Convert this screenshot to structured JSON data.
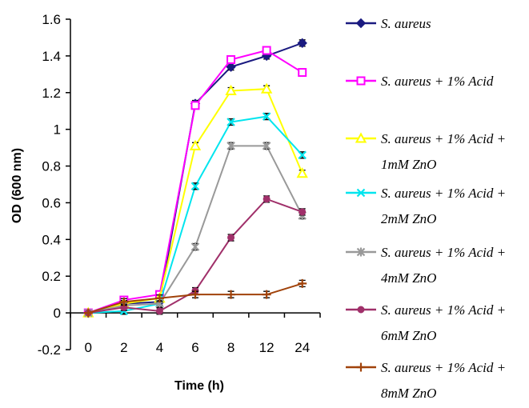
{
  "chart_data": {
    "type": "line",
    "xlabel": "Time (h)",
    "ylabel": "OD (600 nm)",
    "categories": [
      "0",
      "2",
      "4",
      "6",
      "8",
      "12",
      "24"
    ],
    "yticks": [
      "-0.2",
      "0",
      "0.2",
      "0.4",
      "0.6",
      "0.8",
      "1",
      "1.2",
      "1.4",
      "1.6"
    ],
    "ylim": [
      -0.2,
      1.6
    ],
    "grid": false,
    "legend_position": "right",
    "series": [
      {
        "name": "S. aureus",
        "legend_lines": [
          "S. aureus"
        ],
        "color": "#1a1a80",
        "marker": "diamond",
        "values": [
          0.0,
          0.05,
          0.06,
          1.14,
          1.34,
          1.4,
          1.47
        ]
      },
      {
        "name": "S. aureus + 1% Acid",
        "legend_lines": [
          "S. aureus + 1% Acid"
        ],
        "color": "#ff00ff",
        "marker": "square",
        "values": [
          0.0,
          0.07,
          0.1,
          1.13,
          1.38,
          1.43,
          1.31
        ]
      },
      {
        "name": "S. aureus + 1% Acid + 1mM ZnO",
        "legend_lines": [
          "S. aureus + 1% Acid +",
          "1mM ZnO"
        ],
        "color": "#ffff00",
        "marker": "triangle",
        "values": [
          0.0,
          0.05,
          0.08,
          0.91,
          1.21,
          1.22,
          0.76
        ]
      },
      {
        "name": "S. aureus + 1% Acid + 2mM ZnO",
        "legend_lines": [
          "S. aureus + 1% Acid +",
          "2mM ZnO"
        ],
        "color": "#00e5ee",
        "marker": "x",
        "values": [
          0.0,
          0.01,
          0.05,
          0.69,
          1.04,
          1.07,
          0.86
        ]
      },
      {
        "name": "S. aureus + 1% Acid + 4mM ZnO",
        "legend_lines": [
          "S. aureus + 1% Acid +",
          "4mM ZnO"
        ],
        "color": "#999999",
        "marker": "star",
        "values": [
          0.0,
          0.04,
          0.05,
          0.36,
          0.91,
          0.91,
          0.53
        ]
      },
      {
        "name": "S. aureus + 1% Acid + 6mM ZnO",
        "legend_lines": [
          "S. aureus + 1% Acid +",
          "6mM ZnO"
        ],
        "color": "#a0306a",
        "marker": "circle",
        "values": [
          0.0,
          0.03,
          0.01,
          0.12,
          0.41,
          0.62,
          0.55
        ]
      },
      {
        "name": "S. aureus + 1% Acid + 8mM ZnO",
        "legend_lines": [
          "S. aureus + 1% Acid +",
          "8mM ZnO"
        ],
        "color": "#a0420a",
        "marker": "plus",
        "values": [
          0.0,
          0.06,
          0.08,
          0.1,
          0.1,
          0.1,
          0.16
        ]
      }
    ]
  }
}
